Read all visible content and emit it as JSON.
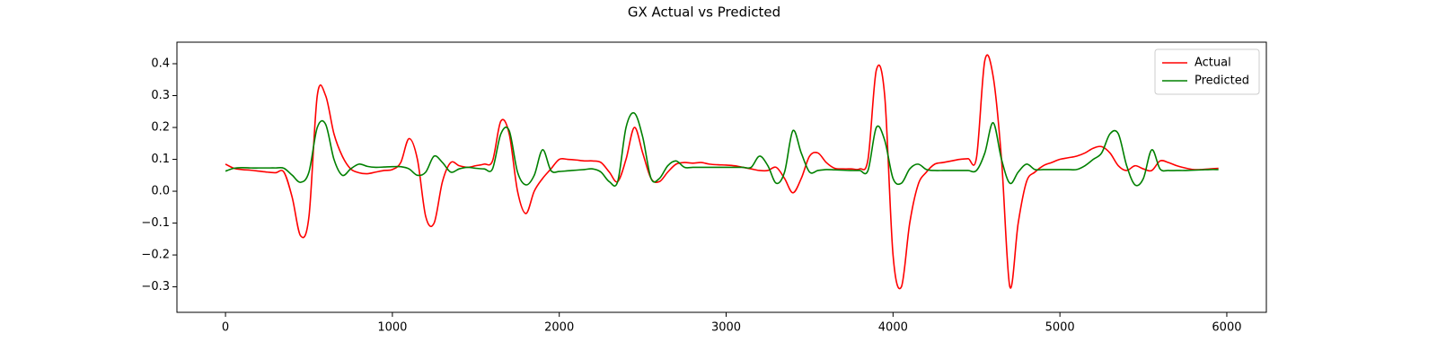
{
  "chart_data": {
    "type": "line",
    "title": "GX Actual vs Predicted",
    "x": [
      0,
      50,
      100,
      150,
      200,
      250,
      300,
      350,
      400,
      450,
      500,
      550,
      600,
      650,
      700,
      750,
      800,
      850,
      900,
      950,
      1000,
      1050,
      1100,
      1150,
      1200,
      1250,
      1300,
      1350,
      1400,
      1450,
      1500,
      1550,
      1600,
      1650,
      1700,
      1750,
      1800,
      1850,
      1900,
      1950,
      2000,
      2050,
      2100,
      2150,
      2200,
      2250,
      2300,
      2350,
      2400,
      2450,
      2500,
      2550,
      2600,
      2650,
      2700,
      2750,
      2800,
      2850,
      2900,
      2950,
      3000,
      3050,
      3100,
      3150,
      3200,
      3250,
      3300,
      3350,
      3400,
      3450,
      3500,
      3550,
      3600,
      3650,
      3700,
      3750,
      3800,
      3850,
      3900,
      3950,
      4000,
      4050,
      4100,
      4150,
      4200,
      4250,
      4300,
      4350,
      4400,
      4450,
      4500,
      4550,
      4600,
      4650,
      4700,
      4750,
      4800,
      4850,
      4900,
      4950,
      5000,
      5050,
      5100,
      5150,
      5200,
      5250,
      5300,
      5350,
      5400,
      5450,
      5500,
      5550,
      5600,
      5650,
      5700,
      5750,
      5800,
      5850,
      5900,
      5950
    ],
    "series": [
      {
        "name": "Actual",
        "color": "#ff0000",
        "values": [
          0.085,
          0.072,
          0.068,
          0.066,
          0.063,
          0.06,
          0.058,
          0.06,
          -0.02,
          -0.14,
          -0.08,
          0.3,
          0.3,
          0.18,
          0.11,
          0.07,
          0.058,
          0.055,
          0.06,
          0.065,
          0.068,
          0.09,
          0.165,
          0.1,
          -0.08,
          -0.1,
          0.03,
          0.09,
          0.08,
          0.075,
          0.08,
          0.085,
          0.095,
          0.22,
          0.18,
          0.0,
          -0.07,
          0.0,
          0.04,
          0.07,
          0.1,
          0.1,
          0.098,
          0.095,
          0.095,
          0.09,
          0.06,
          0.03,
          0.1,
          0.2,
          0.12,
          0.04,
          0.03,
          0.06,
          0.085,
          0.09,
          0.088,
          0.09,
          0.085,
          0.083,
          0.082,
          0.08,
          0.075,
          0.07,
          0.065,
          0.065,
          0.075,
          0.04,
          -0.005,
          0.04,
          0.11,
          0.12,
          0.09,
          0.072,
          0.07,
          0.07,
          0.07,
          0.1,
          0.38,
          0.3,
          -0.2,
          -0.3,
          -0.1,
          0.02,
          0.06,
          0.085,
          0.09,
          0.095,
          0.1,
          0.102,
          0.105,
          0.41,
          0.36,
          0.1,
          -0.3,
          -0.1,
          0.03,
          0.06,
          0.08,
          0.09,
          0.1,
          0.105,
          0.11,
          0.12,
          0.135,
          0.14,
          0.12,
          0.08,
          0.065,
          0.08,
          0.07,
          0.065,
          0.095,
          0.09,
          0.08,
          0.073,
          0.068,
          0.068,
          0.07,
          0.072
        ]
      },
      {
        "name": "Predicted",
        "color": "#008000",
        "values": [
          0.063,
          0.072,
          0.074,
          0.073,
          0.073,
          0.073,
          0.073,
          0.072,
          0.05,
          0.028,
          0.06,
          0.2,
          0.21,
          0.1,
          0.05,
          0.07,
          0.085,
          0.078,
          0.075,
          0.076,
          0.077,
          0.077,
          0.07,
          0.05,
          0.06,
          0.11,
          0.09,
          0.06,
          0.07,
          0.075,
          0.072,
          0.07,
          0.07,
          0.18,
          0.19,
          0.06,
          0.02,
          0.05,
          0.13,
          0.065,
          0.062,
          0.064,
          0.066,
          0.068,
          0.07,
          0.06,
          0.03,
          0.03,
          0.2,
          0.245,
          0.17,
          0.04,
          0.04,
          0.08,
          0.095,
          0.075,
          0.075,
          0.075,
          0.075,
          0.075,
          0.075,
          0.075,
          0.075,
          0.075,
          0.11,
          0.08,
          0.025,
          0.06,
          0.19,
          0.12,
          0.06,
          0.065,
          0.068,
          0.067,
          0.066,
          0.065,
          0.065,
          0.065,
          0.2,
          0.16,
          0.04,
          0.025,
          0.07,
          0.085,
          0.068,
          0.065,
          0.065,
          0.065,
          0.065,
          0.065,
          0.065,
          0.12,
          0.215,
          0.1,
          0.025,
          0.06,
          0.085,
          0.068,
          0.068,
          0.068,
          0.068,
          0.068,
          0.068,
          0.08,
          0.1,
          0.12,
          0.18,
          0.18,
          0.08,
          0.02,
          0.04,
          0.13,
          0.07,
          0.065,
          0.065,
          0.065,
          0.066,
          0.067,
          0.068,
          0.068
        ]
      }
    ],
    "xlim": [
      -291,
      6237
    ],
    "ylim": [
      -0.38,
      0.4676
    ],
    "xticks": [
      0,
      1000,
      2000,
      3000,
      4000,
      5000,
      6000
    ],
    "yticks": [
      {
        "value": -0.3,
        "label": "−0.3"
      },
      {
        "value": -0.2,
        "label": "−0.2"
      },
      {
        "value": -0.1,
        "label": "−0.1"
      },
      {
        "value": 0,
        "label": "0.0"
      },
      0.1,
      0.2,
      0.3,
      0.4
    ],
    "legend": "upper right",
    "grid": false
  }
}
